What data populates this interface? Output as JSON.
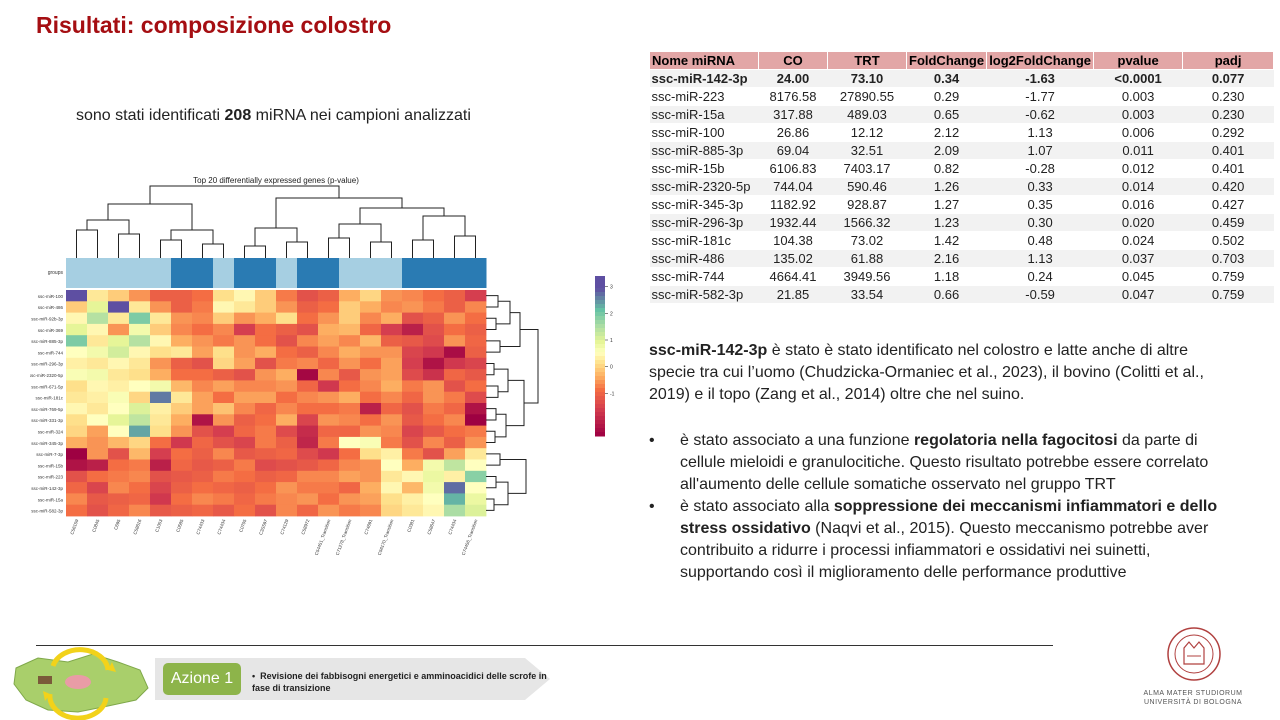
{
  "title": "Risultati: composizione colostro",
  "intro": {
    "pre": "sono stati identificati ",
    "count": "208",
    "post": " miRNA nei campioni analizzati"
  },
  "table": {
    "headers": [
      "Nome miRNA",
      "CO",
      "TRT",
      "FoldChange",
      "log2FoldChange",
      "pvalue",
      "padj"
    ],
    "rows": [
      [
        "ssc-miR-142-3p",
        "24.00",
        "73.10",
        "0.34",
        "-1.63",
        "<0.0001",
        "0.077"
      ],
      [
        "ssc-miR-223",
        "8176.58",
        "27890.55",
        "0.29",
        "-1.77",
        "0.003",
        "0.230"
      ],
      [
        "ssc-miR-15a",
        "317.88",
        "489.03",
        "0.65",
        "-0.62",
        "0.003",
        "0.230"
      ],
      [
        "ssc-miR-100",
        "26.86",
        "12.12",
        "2.12",
        "1.13",
        "0.006",
        "0.292"
      ],
      [
        "ssc-miR-885-3p",
        "69.04",
        "32.51",
        "2.09",
        "1.07",
        "0.011",
        "0.401"
      ],
      [
        "ssc-miR-15b",
        "6106.83",
        "7403.17",
        "0.82",
        "-0.28",
        "0.012",
        "0.401"
      ],
      [
        "ssc-miR-2320-5p",
        "744.04",
        "590.46",
        "1.26",
        "0.33",
        "0.014",
        "0.420"
      ],
      [
        "ssc-miR-345-3p",
        "1182.92",
        "928.87",
        "1.27",
        "0.35",
        "0.016",
        "0.427"
      ],
      [
        "ssc-miR-296-3p",
        "1932.44",
        "1566.32",
        "1.23",
        "0.30",
        "0.020",
        "0.459"
      ],
      [
        "ssc-miR-181c",
        "104.38",
        "73.02",
        "1.42",
        "0.48",
        "0.024",
        "0.502"
      ],
      [
        "ssc-miR-486",
        "135.02",
        "61.88",
        "2.16",
        "1.13",
        "0.037",
        "0.703"
      ],
      [
        "ssc-miR-744",
        "4664.41",
        "3949.56",
        "1.18",
        "0.24",
        "0.045",
        "0.759"
      ],
      [
        "ssc-miR-582-3p",
        "21.85",
        "33.54",
        "0.66",
        "-0.59",
        "0.047",
        "0.759"
      ]
    ]
  },
  "paragraph": {
    "bold": "ssc-miR-142-3p",
    "text": " è stato è stato identificato nel colostro e latte anche di altre specie tra cui l’uomo (Chudzicka-Ormaniec et al., 2023), il bovino (Colitti et al., 2019) e il topo (Zang et al., 2014) oltre che nel suino."
  },
  "bullets": [
    {
      "pre": "è stato associato a una funzione ",
      "bold": "regolatoria nella fagocitosi",
      "post": " da parte di cellule mieloidi e granulocitiche. Questo risultato potrebbe essere correlato all'aumento delle cellule somatiche osservato nel gruppo TRT"
    },
    {
      "pre": "è stato associato alla ",
      "bold": "soppressione dei meccanismi infiammatori e dello stress ossidativo",
      "post": " (Naqvi et al., 2015). Questo meccanismo potrebbe aver contribuito a ridurre i processi infiammatori e ossidativi nei suinetti, supportando così il miglioramento delle performance produttive"
    }
  ],
  "bullet_glyph": "•",
  "heatmap": {
    "title": "Top 20 differentially expressed genes (p-value)",
    "group_label": "groups",
    "row_labels": [
      "ssc-miR-100",
      "ssc-miR-486",
      "ssc-miR-92b-3p",
      "ssc-miR-369",
      "ssc-miR-885-3p",
      "ssc-miR-744",
      "ssc-miR-296-3p",
      "ssc-miR-2320-5p",
      "ssc-miR-671-5p",
      "ssc-miR-181c",
      "ssc-miR-769-5p",
      "ssc-miR-331-3p",
      "ssc-miR-324",
      "ssc-miR-345-3p",
      "ssc-miR-7-3p",
      "ssc-miR-15b",
      "ssc-miR-223",
      "ssc-miR-142-3p",
      "ssc-miR-15a",
      "ssc-miR-582-3p"
    ],
    "col_labels": [
      "C56159",
      "C0845",
      "C695",
      "C58616",
      "C1053",
      "C0585",
      "C74433",
      "C74434",
      "C0705",
      "C3S597",
      "C74129",
      "C58972",
      "C54451_Transition",
      "C71278_Transition",
      "C74691",
      "C56170_Transition",
      "C0381",
      "C58647",
      "C74434",
      "C74456_Transition"
    ],
    "groups": [
      0,
      0,
      0,
      0,
      0,
      1,
      1,
      0,
      1,
      1,
      0,
      1,
      1,
      0,
      0,
      0,
      1,
      1,
      1,
      1
    ],
    "colorbar_ticks": [
      "3",
      "2",
      "1",
      "0",
      "-1"
    ],
    "seed_values": [
      [
        3,
        0.3,
        0,
        -0.5,
        -1,
        -1,
        -0.8,
        0.2,
        0.5,
        0,
        -0.7,
        -1.2,
        -1,
        -0.3,
        0.1,
        -0.5,
        -0.6,
        -0.8,
        -1,
        -1.5
      ],
      [
        0,
        1,
        3,
        0.3,
        -0.5,
        -1,
        -0.7,
        0.5,
        0.3,
        0,
        -0.5,
        -1,
        -0.8,
        0,
        -0.3,
        -0.6,
        -0.5,
        -0.7,
        -1,
        -0.6
      ],
      [
        0.5,
        1.5,
        0.3,
        2,
        0.3,
        -0.5,
        -0.6,
        0,
        -0.5,
        -0.3,
        0.2,
        -0.8,
        -0.5,
        0,
        -0.6,
        -0.3,
        -1.2,
        -1,
        -0.5,
        -0.8
      ],
      [
        1,
        0.5,
        -0.5,
        0.8,
        0,
        -0.6,
        -0.8,
        -0.6,
        -1.5,
        -0.8,
        -1,
        -1.2,
        -0.3,
        -0.2,
        -0.9,
        -1.5,
        -2,
        -1.2,
        -0.8,
        -1
      ],
      [
        2,
        0.3,
        1,
        1.5,
        0.5,
        -0.3,
        -0.5,
        -0.7,
        -0.5,
        -0.8,
        -1.2,
        -0.6,
        -0.4,
        -0.6,
        -0.2,
        -1,
        -1.1,
        -1.3,
        -0.5,
        -0.9
      ],
      [
        0.6,
        0.8,
        1.2,
        0.5,
        0.2,
        0.3,
        -0.4,
        0.2,
        -0.5,
        -0.3,
        -0.8,
        -1,
        -0.6,
        -0.3,
        -0.5,
        -0.5,
        -1.4,
        -1.6,
        -2.3,
        -1
      ],
      [
        0.4,
        0.3,
        0.5,
        0.3,
        -0.5,
        -1,
        -1.2,
        0.1,
        -0.4,
        -1.2,
        -0.7,
        -0.6,
        -0.9,
        -0.5,
        -0.8,
        -0.4,
        -1.5,
        -2.2,
        -1.6,
        -1.4
      ],
      [
        0.7,
        0.8,
        0.3,
        0.2,
        -0.3,
        -0.8,
        -0.8,
        -1,
        -1.2,
        -0.5,
        -0.3,
        -2.4,
        -0.6,
        -1.1,
        -0.5,
        -0.4,
        -1.3,
        -1.7,
        -0.9,
        -1.1
      ],
      [
        0.2,
        0.5,
        0.4,
        0.6,
        0.8,
        -0.2,
        -0.6,
        -0.4,
        -0.6,
        -0.6,
        -0.5,
        -0.9,
        -1.6,
        -0.8,
        -0.6,
        -0.3,
        -0.7,
        -0.5,
        -1.2,
        -0.8
      ],
      [
        0.3,
        0.4,
        0.7,
        0.1,
        2.7,
        0.3,
        -0.4,
        -0.8,
        -0.4,
        -0.4,
        -0.8,
        -0.6,
        -0.5,
        -0.3,
        -0.8,
        -0.6,
        -0.9,
        -0.5,
        -0.7,
        -1.3
      ],
      [
        0.5,
        0.3,
        0.6,
        1.1,
        0.4,
        0,
        -0.4,
        -0.1,
        -0.6,
        -0.9,
        -0.6,
        -0.8,
        -0.8,
        -0.7,
        -2,
        -0.9,
        -1.2,
        -0.7,
        -0.9,
        -2.2
      ],
      [
        0.2,
        0.6,
        1,
        1.4,
        0.3,
        -0.3,
        -2.2,
        -0.5,
        -1,
        -0.8,
        -0.3,
        -1.4,
        -0.5,
        -0.6,
        -0.8,
        -0.5,
        -1.1,
        -0.8,
        -0.6,
        -2.5
      ],
      [
        0.1,
        -0.4,
        0.6,
        2.4,
        0.2,
        -0.5,
        -1.2,
        -1.5,
        -0.9,
        -0.7,
        -1.3,
        -1.8,
        -0.9,
        -0.9,
        -0.5,
        -0.6,
        -1.4,
        -1.1,
        -0.8,
        -0.7
      ],
      [
        -0.3,
        -0.5,
        -0.2,
        0.1,
        -0.8,
        -1.6,
        -0.9,
        -1.2,
        -1.4,
        -0.7,
        -1,
        -1.9,
        -0.7,
        0.6,
        0.7,
        -0.7,
        -1.2,
        -0.6,
        -1,
        -0.5
      ],
      [
        -2.5,
        -0.5,
        -1.2,
        -0.2,
        -1.5,
        -0.8,
        -1,
        -0.6,
        -1.1,
        -1,
        -0.9,
        -1.3,
        -1.6,
        -0.8,
        0.2,
        0.4,
        -0.7,
        -1.2,
        -0.4,
        0.3
      ],
      [
        -2.2,
        -2,
        -0.8,
        -0.7,
        -2,
        -0.9,
        -1.1,
        -1,
        -0.7,
        -1.3,
        -1.2,
        -1.1,
        -0.9,
        -0.6,
        -0.5,
        0.6,
        -0.3,
        0.8,
        1.4,
        0.6
      ],
      [
        -1.2,
        -0.8,
        -0.7,
        -0.6,
        -1.2,
        -1.1,
        -1,
        -0.7,
        -0.8,
        -1,
        -0.9,
        -0.6,
        -0.6,
        -0.4,
        -0.5,
        0.3,
        0.5,
        0.9,
        0.4,
        1.9
      ],
      [
        -0.9,
        -1.4,
        -0.6,
        -0.8,
        -1.4,
        -1,
        -0.8,
        -0.9,
        -1,
        -0.8,
        -0.5,
        -0.7,
        -0.7,
        -0.9,
        -0.3,
        0.5,
        -0.2,
        0.8,
        2.8,
        0.6
      ],
      [
        -0.6,
        -1.1,
        -1,
        -0.9,
        -1.6,
        -0.8,
        -0.6,
        -0.7,
        -0.9,
        -0.7,
        -0.6,
        -0.5,
        -0.8,
        -0.5,
        -0.4,
        0.2,
        0.4,
        0.6,
        2.3,
        0.9
      ],
      [
        -0.8,
        -1.2,
        -0.9,
        -0.6,
        -1.1,
        -1,
        -0.9,
        -1.1,
        -0.8,
        -1.2,
        -0.6,
        -0.9,
        -0.5,
        -0.7,
        -0.6,
        0.1,
        0.3,
        0.5,
        1.6,
        1.1
      ]
    ]
  },
  "colors": {
    "title_red": "#a50e12",
    "table_header": "#e2a6a6",
    "group_light": "#a6cfe2",
    "group_dark": "#2a7bb3",
    "azione_green": "#8db44a",
    "arrow_gray": "#e6e6e6"
  },
  "footer": {
    "azione_label": "Azione 1",
    "azione_bullet": "•",
    "azione_text": "Revisione dei fabbisogni energetici e amminoacidici delle scrofe in fase di transizione",
    "uni_name_line1": "ALMA MATER STUDIORUM",
    "uni_name_line2": "UNIVERSITÀ DI BOLOGNA",
    "seal_text": "ALMA MATER STUDIORUM",
    "seal_year": "A.D. 1088"
  }
}
